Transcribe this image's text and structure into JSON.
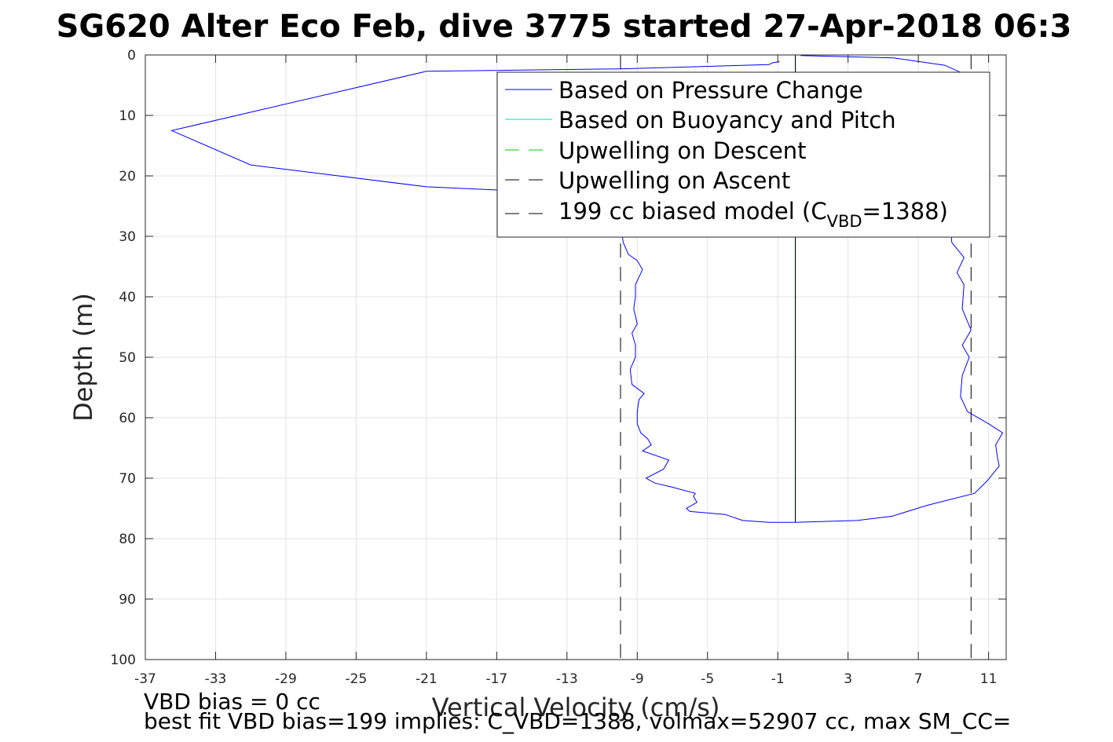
{
  "title": "SG620 Alter Eco Feb, dive 3775 started 27-Apr-2018 06:3",
  "footnotes": {
    "line1": "VBD bias = 0 cc",
    "line2": "best fit VBD bias=199 implies: C_VBD=1388, volmax=52907 cc, max SM_CC="
  },
  "chart_data": {
    "type": "line",
    "title": "SG620 Alter Eco Feb, dive 3775 started 27-Apr-2018 06:3",
    "xlabel": "Vertical Velocity (cm/s)",
    "ylabel": "Depth (m)",
    "xlim": [
      -37,
      12
    ],
    "ylim": [
      0,
      100
    ],
    "y_reversed": true,
    "grid": true,
    "xticks": [
      -37,
      -33,
      -29,
      -25,
      -21,
      -17,
      -13,
      -9,
      -5,
      -1,
      3,
      7,
      11
    ],
    "yticks": [
      0,
      10,
      20,
      30,
      40,
      50,
      60,
      70,
      80,
      90,
      100
    ],
    "legend_position": "top-right",
    "legend": [
      {
        "label": "Based on Pressure Change",
        "color": "#0000ff",
        "dash": "solid"
      },
      {
        "label": "Based on Buoyancy and Pitch",
        "color": "#00d8c0",
        "dash": "solid"
      },
      {
        "label": "Upwelling on Descent",
        "color": "#00cc00",
        "dash": "dashed"
      },
      {
        "label": "Upwelling on Ascent",
        "color": "#000000",
        "dash": "dashed"
      },
      {
        "label_main": "199 cc biased model (C",
        "label_sub": "VBD",
        "label_end": "=1388)",
        "color": "#000000",
        "dash": "dashed"
      }
    ],
    "series": [
      {
        "name": "Based on Pressure Change",
        "color": "#0000ff",
        "points": [
          [
            0.3,
            0.1
          ],
          [
            5.6,
            0.5
          ],
          [
            8.5,
            1.7
          ],
          [
            9.5,
            3.0
          ],
          [
            9.0,
            8.0
          ],
          [
            9.3,
            14.0
          ],
          [
            9.0,
            20.0
          ],
          [
            8.8,
            26.0
          ],
          [
            8.9,
            31.0
          ],
          [
            9.6,
            33.5
          ],
          [
            9.2,
            36.0
          ],
          [
            9.6,
            38.0
          ],
          [
            9.5,
            42.0
          ],
          [
            10.0,
            45.5
          ],
          [
            9.5,
            48.0
          ],
          [
            9.9,
            50.0
          ],
          [
            9.5,
            53.0
          ],
          [
            9.4,
            56.5
          ],
          [
            9.8,
            59.0
          ],
          [
            11.0,
            61.0
          ],
          [
            11.8,
            62.5
          ],
          [
            11.4,
            64.5
          ],
          [
            11.5,
            66.5
          ],
          [
            11.6,
            68.0
          ],
          [
            10.9,
            70.5
          ],
          [
            10.2,
            72.5
          ],
          [
            7.5,
            74.5
          ],
          [
            5.5,
            76.3
          ],
          [
            3.5,
            77.0
          ],
          [
            0.0,
            77.3
          ],
          [
            -1.5,
            77.3
          ],
          [
            -3.0,
            77.0
          ],
          [
            -4.0,
            76.0
          ],
          [
            -6.0,
            75.5
          ],
          [
            -6.2,
            75.0
          ],
          [
            -5.6,
            74.0
          ],
          [
            -5.8,
            73.0
          ],
          [
            -5.7,
            72.5
          ],
          [
            -7.0,
            71.5
          ],
          [
            -8.0,
            70.8
          ],
          [
            -8.5,
            70.0
          ],
          [
            -7.5,
            68.5
          ],
          [
            -7.2,
            67.0
          ],
          [
            -8.7,
            65.5
          ],
          [
            -8.2,
            64.5
          ],
          [
            -8.4,
            63.5
          ],
          [
            -8.8,
            62.5
          ],
          [
            -9.0,
            61.0
          ],
          [
            -9.0,
            60.0
          ],
          [
            -9.0,
            59.0
          ],
          [
            -8.9,
            57.0
          ],
          [
            -8.6,
            56.0
          ],
          [
            -9.3,
            54.5
          ],
          [
            -9.4,
            52.0
          ],
          [
            -9.1,
            50.0
          ],
          [
            -9.1,
            48.0
          ],
          [
            -9.3,
            46.0
          ],
          [
            -9.0,
            44.5
          ],
          [
            -9.2,
            42.0
          ],
          [
            -9.1,
            40.0
          ],
          [
            -9.1,
            38.0
          ],
          [
            -8.7,
            35.5
          ],
          [
            -9.0,
            34.0
          ],
          [
            -9.5,
            33.0
          ],
          [
            -9.8,
            31.0
          ],
          [
            -10.0,
            27.0
          ],
          [
            -10.3,
            24.5
          ],
          [
            -12.0,
            23.0
          ],
          [
            -21.0,
            21.8
          ],
          [
            -31.0,
            18.2
          ],
          [
            -35.5,
            12.5
          ],
          [
            -21.0,
            2.7
          ],
          [
            -10.0,
            2.3
          ],
          [
            -1.5,
            1.6
          ],
          [
            -1.3,
            1.3
          ],
          [
            -0.9,
            1.1
          ]
        ]
      },
      {
        "name": "Based on Buoyancy and Pitch",
        "color": "#00d8c0",
        "points": [
          [
            0,
            0
          ],
          [
            0,
            77.3
          ]
        ]
      },
      {
        "name": "Upwelling on Descent",
        "color": "#00cc00",
        "points": [
          [
            0,
            0
          ],
          [
            0,
            77.3
          ]
        ]
      },
      {
        "name": "Upwelling on Ascent",
        "color": "#000000",
        "points": [
          [
            0,
            0
          ],
          [
            0,
            77.3
          ]
        ]
      },
      {
        "name": "199 cc biased model (C_VBD=1388) descent",
        "color": "#000000",
        "dash": "dashed",
        "points": [
          [
            -9.95,
            0
          ],
          [
            -9.95,
            100
          ]
        ]
      },
      {
        "name": "199 cc biased model (C_VBD=1388) ascent",
        "color": "#000000",
        "dash": "dashed",
        "points": [
          [
            10.0,
            0
          ],
          [
            10.0,
            100
          ]
        ]
      }
    ]
  }
}
